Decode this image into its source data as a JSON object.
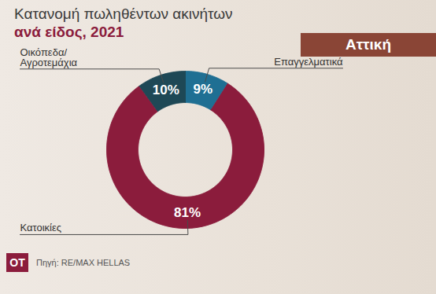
{
  "chart_data": {
    "type": "pie",
    "title": "Κατανομή πωληθέντων ακινήτων",
    "subtitle": "ανά είδος, 2021",
    "annotations": [
      "Αττική"
    ],
    "source": "Πηγή: RE/MAX HELLAS",
    "logo": "OT",
    "categories": [
      "Επαγγελματικά",
      "Κατοικίες",
      "Οικόπεδα/Αγροτεμάχια"
    ],
    "values": [
      9,
      81,
      10
    ],
    "value_labels": [
      "9%",
      "81%",
      "10%"
    ],
    "colors": [
      "#1f6f93",
      "#8b1c3c",
      "#1e4856"
    ],
    "data_labels": true
  }
}
